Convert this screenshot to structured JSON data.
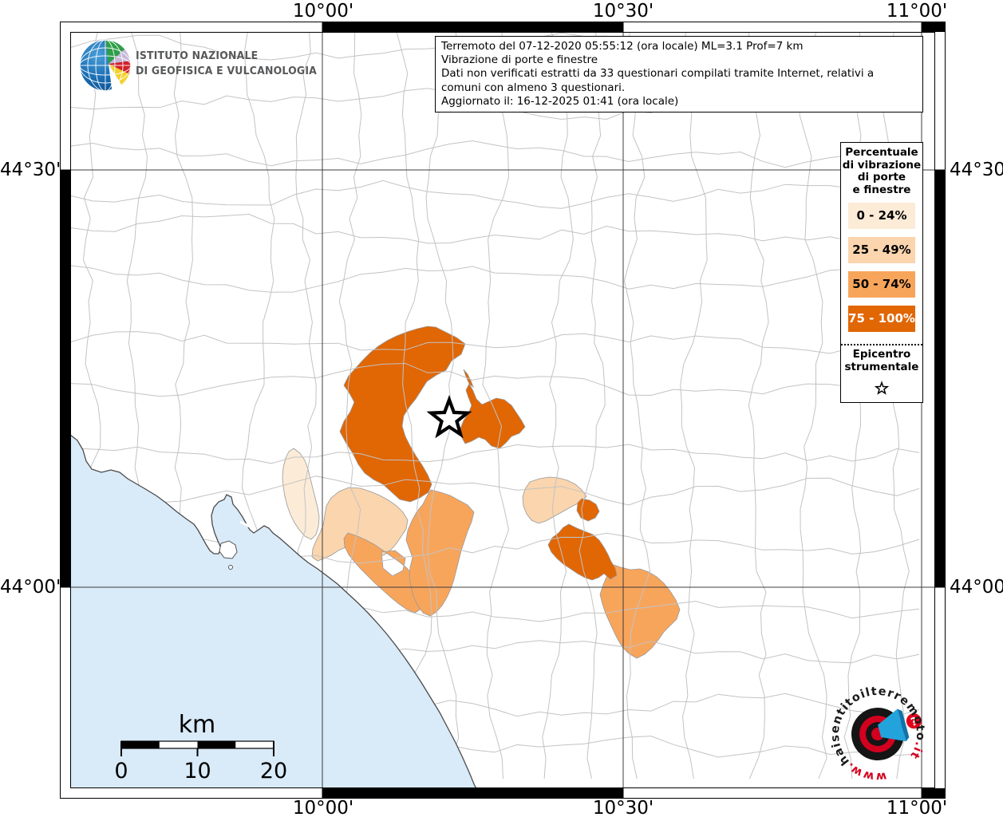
{
  "frame": {
    "top_labels": [
      "10°00'",
      "10°30'",
      "11°00'"
    ],
    "bottom_labels": [
      "10°00'",
      "10°30'",
      "11°00'"
    ],
    "left_labels": [
      "44°30'",
      "44°00'"
    ],
    "right_labels": [
      "44°30'",
      "44°00'"
    ]
  },
  "info_box": {
    "lines": [
      "Terremoto del 07-12-2020 05:55:12 (ora locale) ML=3.1 Prof=7 km",
      "Vibrazione di porte e finestre",
      "Dati non verificati estratti da 33 questionari compilati tramite Internet, relativi a comuni con almeno 3 questionari.",
      "Aggiornato il: 16-12-2025 01:41 (ora locale)"
    ]
  },
  "legend": {
    "title_lines": [
      "Percentuale",
      "di vibrazione",
      "di porte",
      "e finestre"
    ],
    "classes": [
      {
        "label": "0 - 24%",
        "color": "#FCEBD7",
        "text": "#000000"
      },
      {
        "label": "25 - 49%",
        "color": "#FAD5AE",
        "text": "#000000"
      },
      {
        "label": "50 - 74%",
        "color": "#F8A55C",
        "text": "#000000"
      },
      {
        "label": "75 - 100%",
        "color": "#E16604",
        "text": "#FFFFFF"
      }
    ],
    "epicenter_lines": [
      "Epicentro",
      "strumentale"
    ]
  },
  "scalebar": {
    "title": "km",
    "labels": [
      "0",
      "10",
      "20"
    ]
  },
  "ingv": {
    "name_line1": "ISTITUTO NAZIONALE",
    "name_line2": "DI GEOFISICA E VULCANOLOGIA"
  },
  "hsit": {
    "www": "www.",
    "mid": "haisentitoilterremoto",
    "it": ".it",
    "qmark": "?"
  },
  "colors": {
    "sea": "#D9EAF8",
    "coast": "#4A4A4A",
    "boundary": "#C3C3C3",
    "grid": "#3C3C3C",
    "land": "#FFFFFF",
    "star_fill": "#FFFFFF",
    "star_stroke": "#000000"
  },
  "map": {
    "epicenter_symbol": "star",
    "region_classes": {
      "nw-large": 3,
      "east-butterfly": 3,
      "ne-sliver": 3,
      "east-small": 3,
      "east-blob": 3,
      "west-strip": 0,
      "southwest": 1,
      "east-patch": 1,
      "coastal": 2,
      "south-central": 2,
      "southeast": 2
    }
  }
}
